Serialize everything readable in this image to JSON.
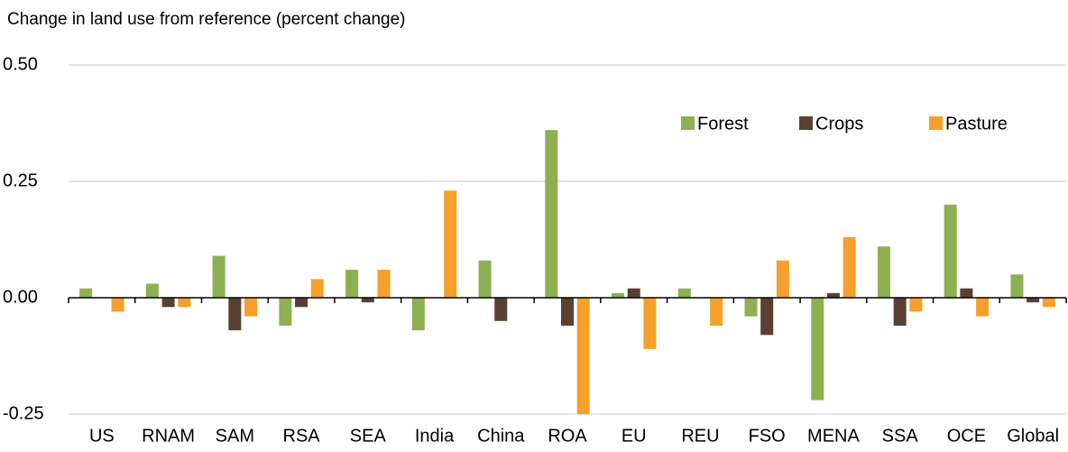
{
  "chart_data": {
    "type": "bar",
    "title": "Change in land use from reference (percent change)",
    "categories": [
      "US",
      "RNAM",
      "SAM",
      "RSA",
      "SEA",
      "India",
      "China",
      "ROA",
      "EU",
      "REU",
      "FSO",
      "MENA",
      "SSA",
      "OCE",
      "Global"
    ],
    "series": [
      {
        "name": "Forest",
        "color": "#8db050",
        "values": [
          0.02,
          0.03,
          0.09,
          -0.06,
          0.06,
          -0.07,
          0.08,
          0.36,
          0.01,
          0.02,
          -0.04,
          -0.22,
          0.11,
          0.2,
          0.05
        ]
      },
      {
        "name": "Crops",
        "color": "#5a4032",
        "values": [
          0,
          -0.02,
          -0.07,
          -0.02,
          -0.01,
          0,
          -0.05,
          -0.06,
          0.02,
          0,
          -0.08,
          0.01,
          -0.06,
          0.02,
          -0.01
        ]
      },
      {
        "name": "Pasture",
        "color": "#f5a02a",
        "values": [
          -0.03,
          -0.02,
          -0.04,
          0.04,
          0.06,
          0.23,
          0,
          -0.25,
          -0.11,
          -0.06,
          0.08,
          0.13,
          -0.03,
          -0.04,
          -0.02
        ]
      }
    ],
    "ylim": [
      -0.25,
      0.5
    ],
    "yticks": [
      {
        "value": 0.5,
        "label": "0.50"
      },
      {
        "value": 0.25,
        "label": "0.25"
      },
      {
        "value": 0,
        "label": "0.00"
      },
      {
        "value": -0.25,
        "label": "-0.25"
      }
    ],
    "grid": true,
    "legend": "top-right"
  }
}
